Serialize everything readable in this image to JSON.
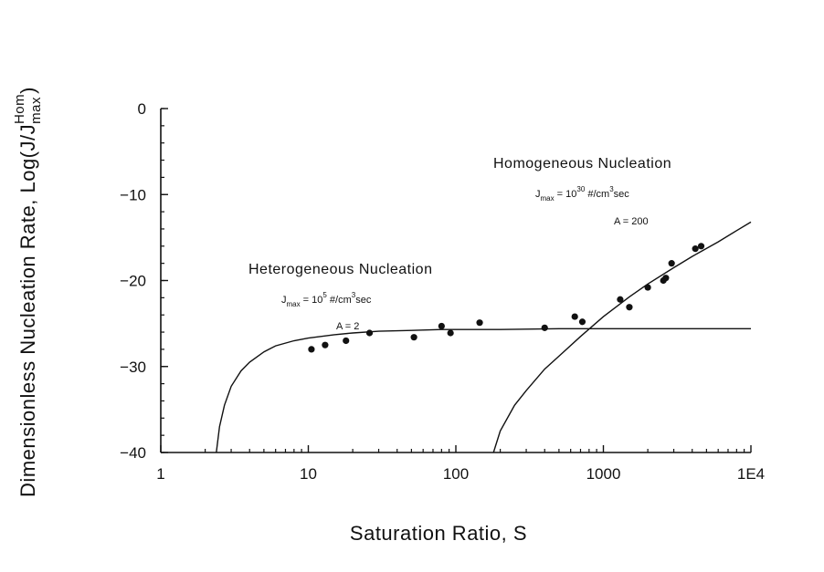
{
  "chart_data": {
    "type": "scatter",
    "title": "",
    "xlabel": "Saturation Ratio, S",
    "ylabel": {
      "main": "Dimensionless Nucleation Rate, Log(J/J",
      "subscript": "max",
      "superscript": "Hom",
      "close": ")"
    },
    "xscale": "log",
    "xlim": [
      1,
      10000
    ],
    "ylim": [
      -40,
      0
    ],
    "xticks": [
      {
        "value": 1,
        "label": "1"
      },
      {
        "value": 10,
        "label": "10"
      },
      {
        "value": 100,
        "label": "100"
      },
      {
        "value": 1000,
        "label": "1000"
      },
      {
        "value": 10000,
        "label": "1E4"
      }
    ],
    "yticks": [
      {
        "value": 0,
        "label": "0"
      },
      {
        "value": -10,
        "label": "−10"
      },
      {
        "value": -20,
        "label": "−20"
      },
      {
        "value": -30,
        "label": "−30"
      },
      {
        "value": -40,
        "label": "−40"
      }
    ],
    "grid": false,
    "legend": "none",
    "series": [
      {
        "kind": "line",
        "x": [
          2.38,
          2.5,
          2.7,
          3.0,
          3.5,
          4,
          5,
          6,
          8,
          10,
          15,
          20,
          30,
          50,
          80,
          100,
          200,
          500,
          1000,
          3000,
          10000
        ],
        "y": [
          -40,
          -37,
          -34.5,
          -32.3,
          -30.5,
          -29.5,
          -28.3,
          -27.6,
          -27,
          -26.7,
          -26.3,
          -26.1,
          -25.9,
          -25.8,
          -25.7,
          -25.7,
          -25.7,
          -25.6,
          -25.6,
          -25.6,
          -25.6
        ]
      },
      {
        "kind": "line",
        "x": [
          180,
          200,
          250,
          300,
          400,
          500,
          700,
          1000,
          1500,
          2000,
          3000,
          4000,
          6000,
          8000,
          10000
        ],
        "y": [
          -40,
          -37.5,
          -34.5,
          -32.8,
          -30.3,
          -28.8,
          -26.5,
          -24.2,
          -21.9,
          -20.4,
          -18.5,
          -17.2,
          -15.5,
          -14.2,
          -13.2
        ]
      },
      {
        "kind": "points",
        "x": [
          10.5,
          13,
          18,
          26,
          52,
          80,
          92,
          145,
          400,
          640,
          720,
          1300,
          1500,
          2000,
          2550,
          2650,
          2900,
          4200,
          4600
        ],
        "y": [
          -28,
          -27.5,
          -27,
          -26.1,
          -26.6,
          -25.3,
          -26.1,
          -24.9,
          -25.5,
          -24.2,
          -24.8,
          -22.2,
          -23.1,
          -20.8,
          -20,
          -19.7,
          -18,
          -16.3,
          -16
        ]
      }
    ],
    "annotations": {
      "heterogeneous": {
        "title": "Heterogeneous Nucleation",
        "jmax_prefix": "J",
        "jmax_sub": "max",
        "jmax_eq": " = 10",
        "jmax_exp": "5",
        "jmax_unit": " #/cm",
        "jmax_unit_exp": "3",
        "jmax_unit_tail": "sec",
        "a_value": "A = 2"
      },
      "homogeneous": {
        "title": "Homogeneous Nucleation",
        "jmax_prefix": "J",
        "jmax_sub": "max",
        "jmax_eq": " = 10",
        "jmax_exp": "30",
        "jmax_unit": " #/cm",
        "jmax_unit_exp": "3",
        "jmax_unit_tail": "sec",
        "a_value": "A = 200"
      }
    }
  }
}
